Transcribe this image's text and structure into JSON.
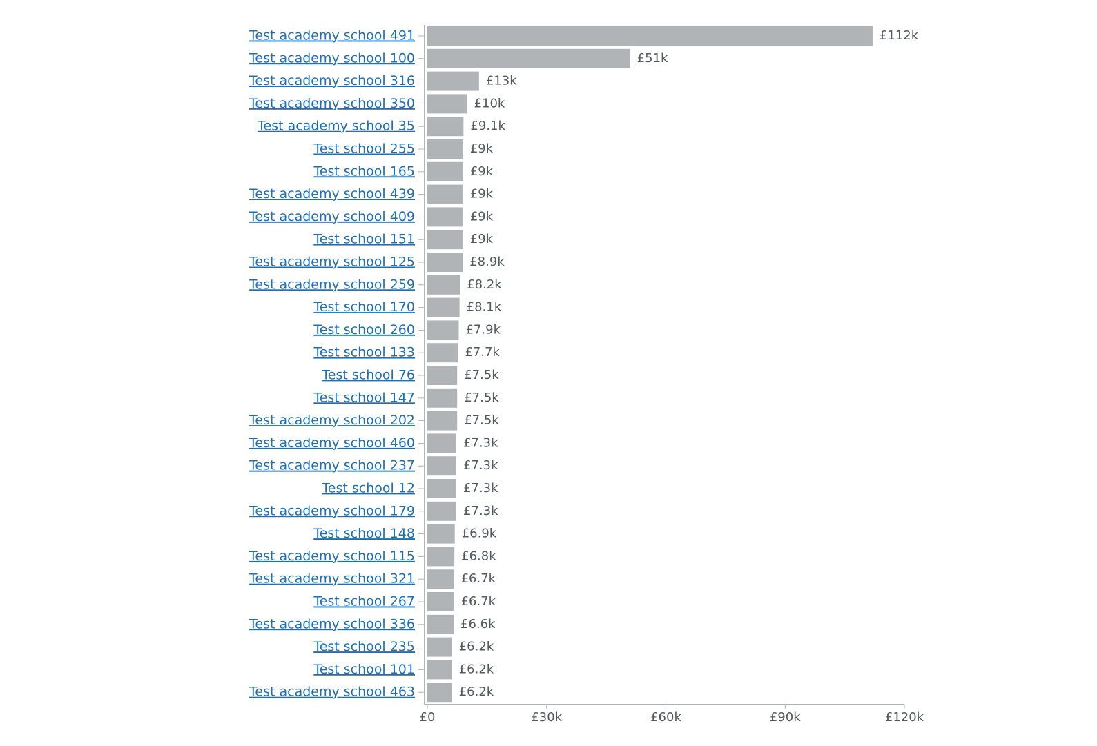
{
  "chart_data": {
    "type": "bar",
    "orientation": "horizontal",
    "categories": [
      "Test academy school 491",
      "Test academy school 100",
      "Test academy school 316",
      "Test academy school 350",
      "Test academy school 35",
      "Test school 255",
      "Test school 165",
      "Test academy school 439",
      "Test academy school 409",
      "Test school 151",
      "Test academy school 125",
      "Test academy school 259",
      "Test school 170",
      "Test school 260",
      "Test school 133",
      "Test school 76",
      "Test school 147",
      "Test academy school 202",
      "Test academy school 460",
      "Test academy school 237",
      "Test school 12",
      "Test academy school 179",
      "Test school 148",
      "Test academy school 115",
      "Test academy school 321",
      "Test school 267",
      "Test academy school 336",
      "Test school 235",
      "Test school 101",
      "Test academy school 463"
    ],
    "values": [
      112000,
      51000,
      13000,
      10000,
      9100,
      9000,
      9000,
      9000,
      9000,
      9000,
      8900,
      8200,
      8100,
      7900,
      7700,
      7500,
      7500,
      7500,
      7300,
      7300,
      7300,
      7300,
      6900,
      6800,
      6700,
      6700,
      6600,
      6200,
      6200,
      6200
    ],
    "value_labels": [
      "£112k",
      "£51k",
      "£13k",
      "£10k",
      "£9.1k",
      "£9k",
      "£9k",
      "£9k",
      "£9k",
      "£9k",
      "£8.9k",
      "£8.2k",
      "£8.1k",
      "£7.9k",
      "£7.7k",
      "£7.5k",
      "£7.5k",
      "£7.5k",
      "£7.3k",
      "£7.3k",
      "£7.3k",
      "£7.3k",
      "£6.9k",
      "£6.8k",
      "£6.7k",
      "£6.7k",
      "£6.6k",
      "£6.2k",
      "£6.2k",
      "£6.2k"
    ],
    "color": "#b1b4b6",
    "xlim": [
      0,
      120000
    ],
    "xticks": [
      {
        "value": 0,
        "label": "£0"
      },
      {
        "value": 30000,
        "label": "£30k"
      },
      {
        "value": 60000,
        "label": "£60k"
      },
      {
        "value": 90000,
        "label": "£90k"
      },
      {
        "value": 120000,
        "label": "£120k"
      }
    ]
  }
}
